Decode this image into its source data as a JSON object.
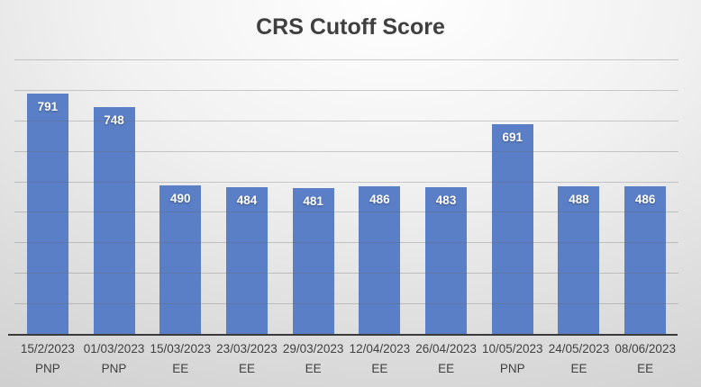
{
  "title": "CRS Cutoff Score",
  "chart_data": {
    "type": "bar",
    "title": "CRS Cutoff Score",
    "categories": [
      "15/2/2023",
      "01/03/2023",
      "15/03/2023",
      "23/03/2023",
      "29/03/2023",
      "12/04/2023",
      "26/04/2023",
      "10/05/2023",
      "24/05/2023",
      "08/06/2023"
    ],
    "category_sublabels": [
      "PNP",
      "PNP",
      "EE",
      "EE",
      "EE",
      "EE",
      "EE",
      "PNP",
      "EE",
      "EE"
    ],
    "values": [
      791,
      748,
      490,
      484,
      481,
      486,
      483,
      691,
      488,
      486
    ],
    "xlabel": "",
    "ylabel": "",
    "ylim": [
      0,
      900
    ],
    "gridline_interval": 100,
    "grid": true,
    "legend": false,
    "data_labels_position": "inside-top",
    "colors": {
      "bar": "#5b7fc7",
      "bar_value_label": "#ffffff",
      "title_text": "#3f3f3f",
      "axis_label_text": "#404040",
      "axis_line": "#3a3a3a",
      "gridline": "rgba(105,105,105,0.32)"
    }
  }
}
